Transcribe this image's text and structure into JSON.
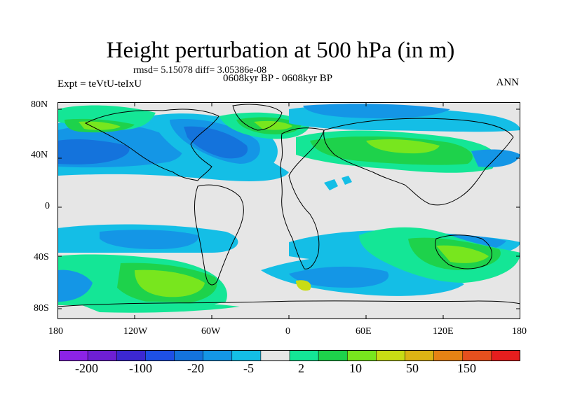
{
  "title": "Height perturbation at 500 hPa (in m)",
  "stats": "rmsd= 5.15078 diff= 3.05386e-08",
  "experiment": "Expt = teVtU-teIxU",
  "period": "0608kyr BP - 0608kyr BP",
  "season": "ANN",
  "lat_labels": [
    "80N",
    "40N",
    "0",
    "40S",
    "80S"
  ],
  "lon_labels": [
    "180",
    "120W",
    "60W",
    "0",
    "60E",
    "120E",
    "180"
  ],
  "colorbar": {
    "colors": [
      "#8c23e6",
      "#6e1fd4",
      "#3c28d2",
      "#1e50e6",
      "#1473dc",
      "#1496e6",
      "#14bee6",
      "#e6e6e6",
      "#14e696",
      "#1ed24b",
      "#78e61e",
      "#c8dc14",
      "#dcb414",
      "#e68214",
      "#e6501e",
      "#e61e1e"
    ],
    "labels": [
      "-200",
      "-100",
      "-20",
      "-5",
      "2",
      "10",
      "50",
      "150"
    ]
  },
  "map_colors": {
    "neutral": "#e6e6e6",
    "cyan": "#14bee6",
    "lightblue": "#1496e6",
    "blue": "#1473dc",
    "teal": "#14e696",
    "green": "#1ed24b",
    "lime": "#78e61e",
    "yellowgreen": "#c8dc14"
  }
}
